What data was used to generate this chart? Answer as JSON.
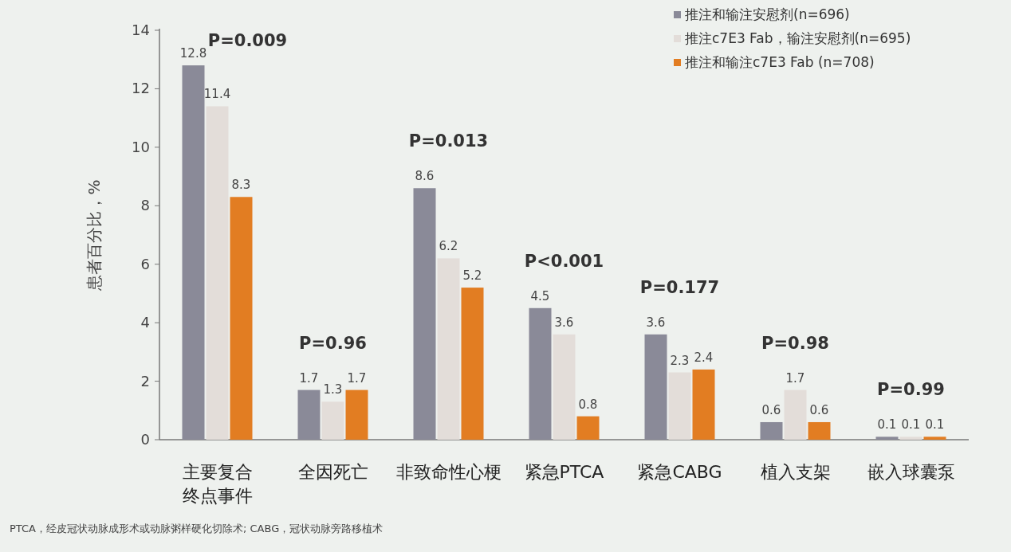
{
  "chart_data": {
    "type": "bar",
    "ylabel": "患者百分比，%",
    "categories": [
      "主要复合终点事件",
      "全因死亡",
      "非致命性心梗",
      "紧急PTCA",
      "紧急CABG",
      "植入支架",
      "嵌入球囊泵"
    ],
    "series": [
      {
        "name": "推注和输注安慰剂(n=696)",
        "color": "#8a8a98",
        "values": [
          12.8,
          1.7,
          8.6,
          4.5,
          3.6,
          0.6,
          0.1
        ]
      },
      {
        "name": "推注c7E3 Fab，输注安慰剂(n=695)",
        "color": "#e3ddd9",
        "values": [
          11.4,
          1.3,
          6.2,
          3.6,
          2.3,
          1.7,
          0.1
        ]
      },
      {
        "name": "推注和输注c7E3 Fab (n=708)",
        "color": "#e27d22",
        "values": [
          8.3,
          1.7,
          5.2,
          0.8,
          2.4,
          0.6,
          0.1
        ]
      }
    ],
    "ylim": [
      0,
      14
    ],
    "yticks": [
      0,
      2,
      4,
      6,
      8,
      10,
      12,
      14
    ],
    "data_labels": true,
    "grid": false,
    "legend": "top right",
    "annotations": [
      "P=0.009",
      "P=0.96",
      "P=0.013",
      "P<0.001",
      "P=0.177",
      "P=0.98",
      "P=0.99",
      "PTCA，经皮冠状动脉成形术或动脉粥样硬化切除术; CABG，冠状动脉旁路移植术"
    ]
  }
}
